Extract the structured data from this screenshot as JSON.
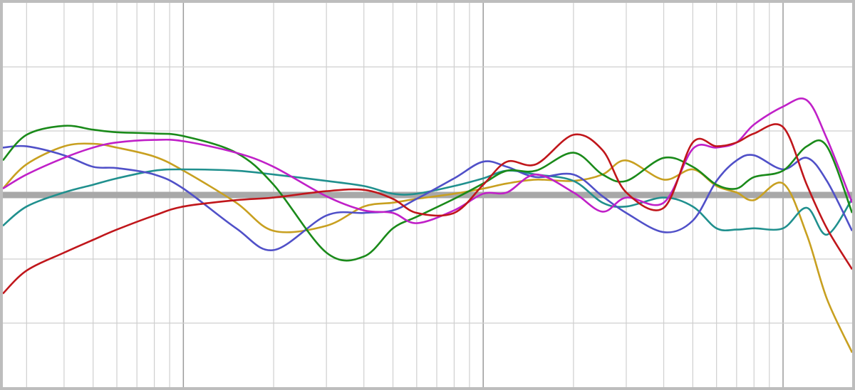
{
  "chart_data": {
    "type": "line",
    "xscale": "log",
    "grid": true,
    "x": [
      25,
      30,
      40,
      50,
      60,
      80,
      100,
      150,
      200,
      300,
      400,
      500,
      600,
      800,
      1000,
      1200,
      1500,
      2000,
      2500,
      3000,
      4000,
      5000,
      6000,
      7000,
      8000,
      10000,
      12000,
      14000,
      17000
    ],
    "xlim": [
      25,
      17000
    ],
    "xticks": [
      30,
      40,
      50,
      60,
      70,
      80,
      90,
      100,
      200,
      300,
      400,
      500,
      600,
      700,
      800,
      900,
      1000,
      2000,
      3000,
      4000,
      5000,
      6000,
      7000,
      8000,
      9000,
      10000
    ],
    "ylim": [
      -15,
      15
    ],
    "yticks": [
      -10,
      -5,
      0,
      5,
      10
    ],
    "series": [
      {
        "color": "#c8a020",
        "values": [
          0.5,
          2.4,
          3.8,
          4,
          3.7,
          3,
          1.9,
          -0.6,
          -2.8,
          -2.4,
          -0.9,
          -0.6,
          -0.3,
          0.1,
          0.5,
          0.9,
          1.2,
          1.1,
          1.6,
          2.7,
          1.2,
          2,
          0.7,
          0.2,
          -0.4,
          0.9,
          -3.1,
          -8.1,
          -12.3
        ]
      },
      {
        "color": "#20908e",
        "values": [
          -2.4,
          -0.9,
          0.2,
          0.8,
          1.3,
          1.9,
          2,
          1.9,
          1.6,
          1.1,
          0.7,
          0.1,
          0.1,
          0.7,
          1.3,
          1.9,
          1.6,
          1.1,
          -0.6,
          -0.9,
          -0.2,
          -0.9,
          -2.6,
          -2.7,
          -2.6,
          -2.6,
          -1,
          -3.1,
          -0.3
        ]
      },
      {
        "color": "#5050c8",
        "values": [
          3.7,
          3.8,
          3.1,
          2.2,
          2.1,
          1.6,
          0.5,
          -2.6,
          -4.3,
          -1.6,
          -1.4,
          -1.2,
          -0.3,
          1.3,
          2.6,
          2.2,
          1.4,
          1.6,
          -0.1,
          -1.4,
          -2.9,
          -2,
          1.1,
          2.7,
          3.1,
          2,
          2.9,
          1.1,
          -2.8
        ]
      },
      {
        "color": "#1a8a1a",
        "values": [
          2.7,
          4.7,
          5.4,
          5.1,
          4.9,
          4.8,
          4.6,
          3.3,
          0.8,
          -4.5,
          -4.8,
          -2.6,
          -1.7,
          -0.3,
          0.9,
          1.9,
          1.9,
          3.3,
          1.6,
          1.1,
          2.9,
          2.2,
          0.8,
          0.5,
          1.4,
          1.9,
          3.8,
          3.8,
          -1.4
        ]
      },
      {
        "color": "#c020c8",
        "values": [
          0.5,
          1.6,
          2.9,
          3.7,
          4.1,
          4.3,
          4.2,
          3.3,
          2.2,
          -0.1,
          -1.2,
          -1.4,
          -2.2,
          -1.2,
          0.1,
          0.2,
          1.6,
          0.2,
          -1.3,
          -0.2,
          -0.6,
          3.6,
          3.7,
          4.1,
          5.5,
          6.9,
          7.4,
          4.4,
          -0.6
        ]
      },
      {
        "color": "#c0161b",
        "values": [
          -7.7,
          -5.9,
          -4.5,
          -3.5,
          -2.7,
          -1.6,
          -0.9,
          -0.4,
          -0.2,
          0.3,
          0.4,
          -0.3,
          -1.4,
          -1.4,
          0.8,
          2.6,
          2.4,
          4.7,
          3.5,
          0.2,
          -1,
          4.1,
          3.8,
          4.1,
          4.8,
          5.3,
          0.8,
          -2.6,
          -5.8
        ]
      }
    ]
  }
}
